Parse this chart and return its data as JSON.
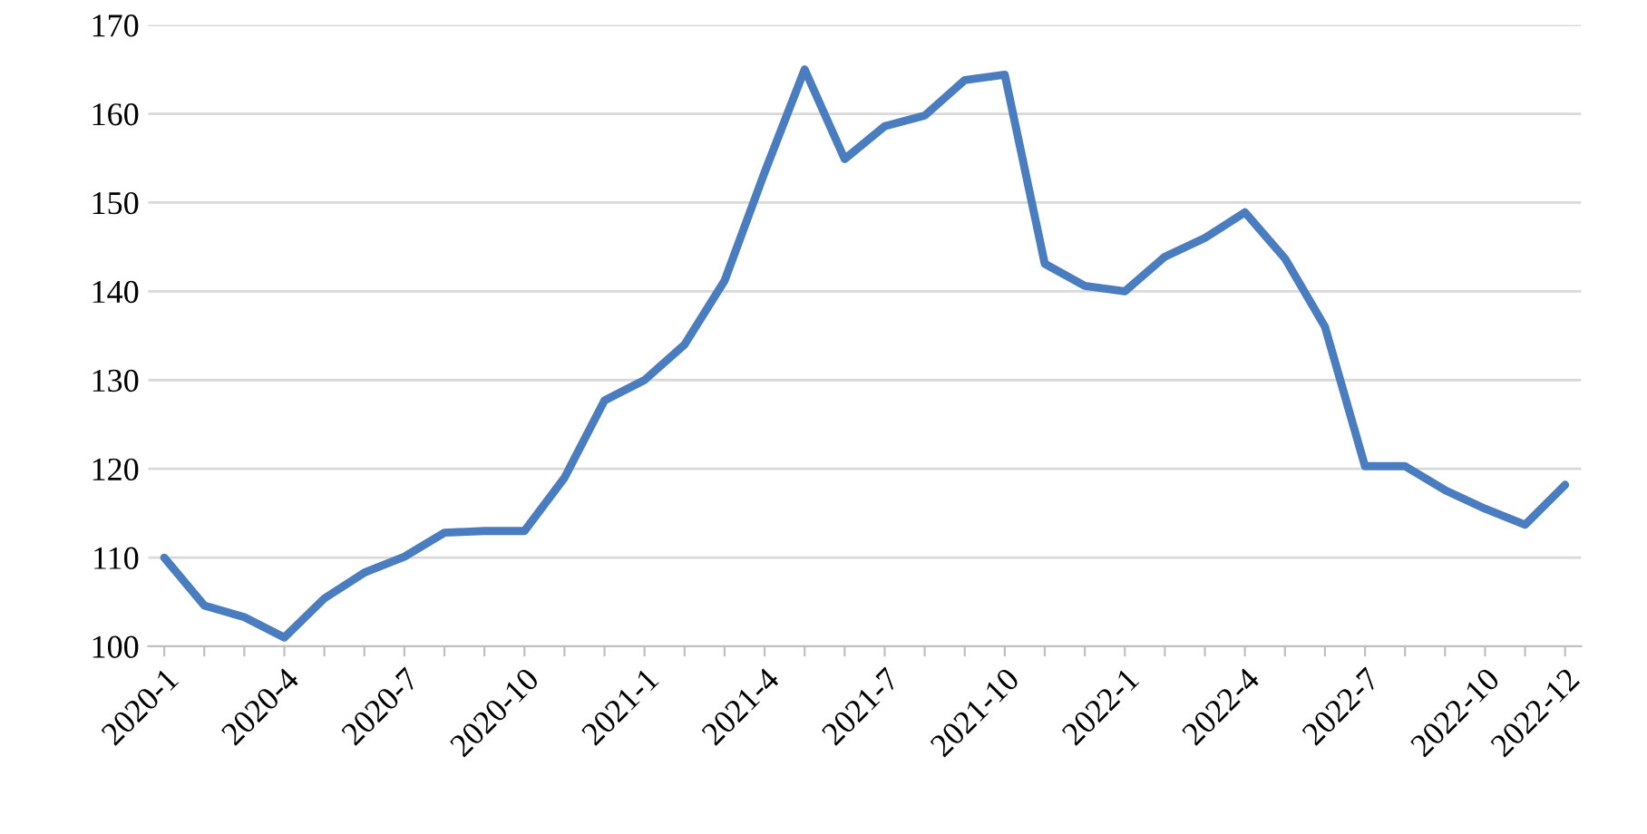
{
  "chart_data": {
    "type": "line",
    "categories": [
      "2020-1",
      null,
      null,
      "2020-4",
      null,
      null,
      "2020-7",
      null,
      null,
      "2020-10",
      null,
      null,
      "2021-1",
      null,
      null,
      "2021-4",
      null,
      null,
      "2021-7",
      null,
      null,
      "2021-10",
      null,
      null,
      "2022-1",
      null,
      null,
      "2022-4",
      null,
      null,
      "2022-7",
      null,
      null,
      "2022-10",
      null,
      "2022-12"
    ],
    "series": [
      {
        "color": "#4a7dbf",
        "values": [
          110,
          104.6,
          103.3,
          101,
          105.4,
          108.3,
          110.1,
          112.8,
          113,
          113,
          119,
          127.7,
          130,
          134,
          141.2,
          153.4,
          165,
          154.9,
          158.6,
          159.8,
          163.8,
          164.4,
          143.1,
          140.6,
          140,
          143.9,
          146,
          148.9,
          143.7,
          136,
          120.3,
          120.3,
          117.6,
          115.5,
          113.7,
          118.2
        ]
      }
    ],
    "ylim": [
      100,
      170
    ],
    "yticks": [
      100,
      110,
      120,
      130,
      140,
      150,
      160,
      170
    ],
    "grid": "y",
    "legend": false
  }
}
